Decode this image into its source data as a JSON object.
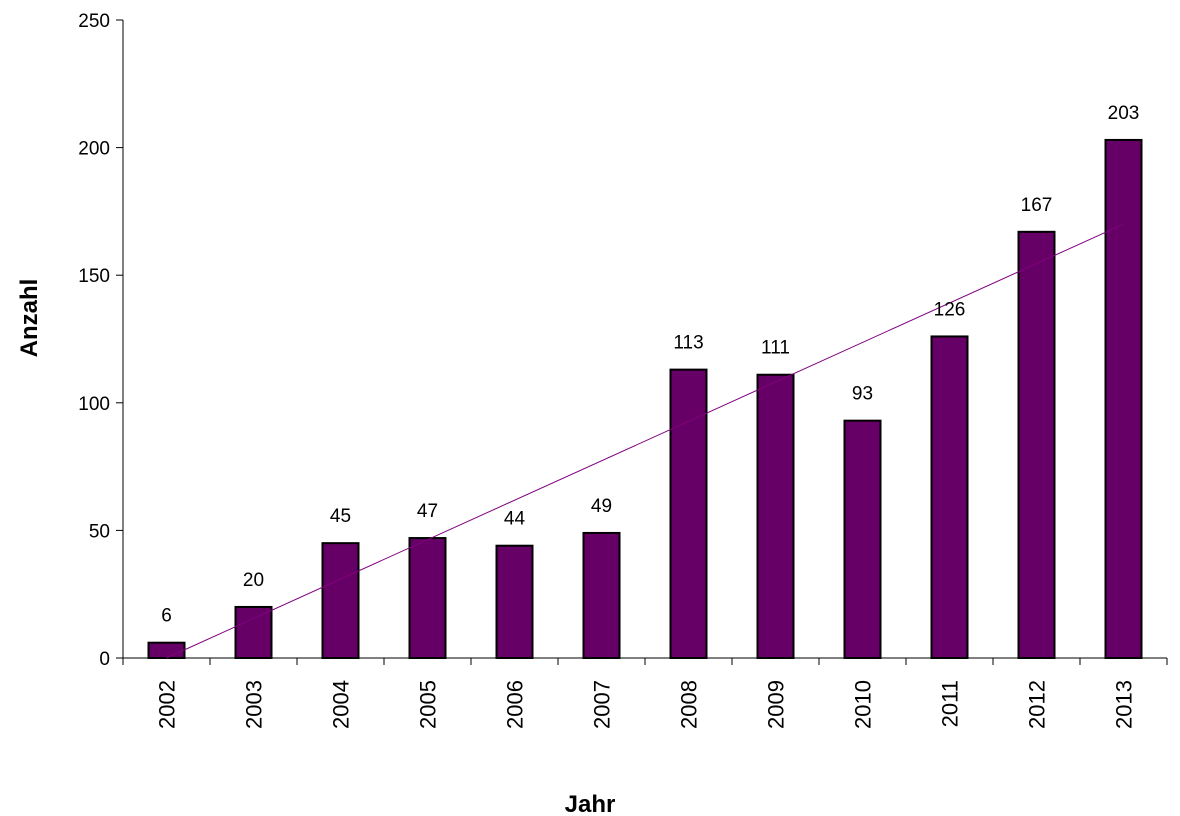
{
  "chart_data": {
    "type": "bar",
    "title": "",
    "xlabel": "Jahr",
    "ylabel": "Anzahl",
    "categories": [
      "2002",
      "2003",
      "2004",
      "2005",
      "2006",
      "2007",
      "2008",
      "2009",
      "2010",
      "2011",
      "2012",
      "2013"
    ],
    "values": [
      6,
      20,
      45,
      47,
      44,
      49,
      113,
      111,
      93,
      126,
      167,
      203
    ],
    "data_labels": [
      "6",
      "20",
      "45",
      "47",
      "44",
      "49",
      "113",
      "111",
      "93",
      "126",
      "167",
      "203"
    ],
    "ylim": [
      0,
      250
    ],
    "yticks": [
      0,
      50,
      100,
      150,
      200,
      250
    ],
    "ytick_labels": [
      "0",
      "50",
      "100",
      "150",
      "200",
      "250"
    ],
    "grid": false,
    "trendline": {
      "type": "linear",
      "y_start": 0,
      "y_end": 170
    },
    "colors": {
      "bar": "#660066",
      "bar_border": "#000000",
      "trendline": "#800080",
      "axis": "#000000"
    }
  }
}
